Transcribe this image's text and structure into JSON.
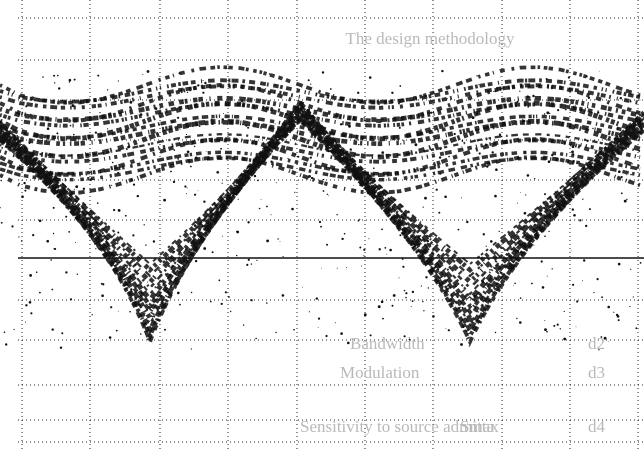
{
  "heading": "The design methodology",
  "rows": [
    {
      "index": "d2",
      "text": "Bandwidth"
    },
    {
      "index": "d3",
      "text": "Modulation"
    },
    {
      "index": "d4",
      "symbol": "Smax",
      "text": "Sensitivity to source admitta"
    }
  ]
}
